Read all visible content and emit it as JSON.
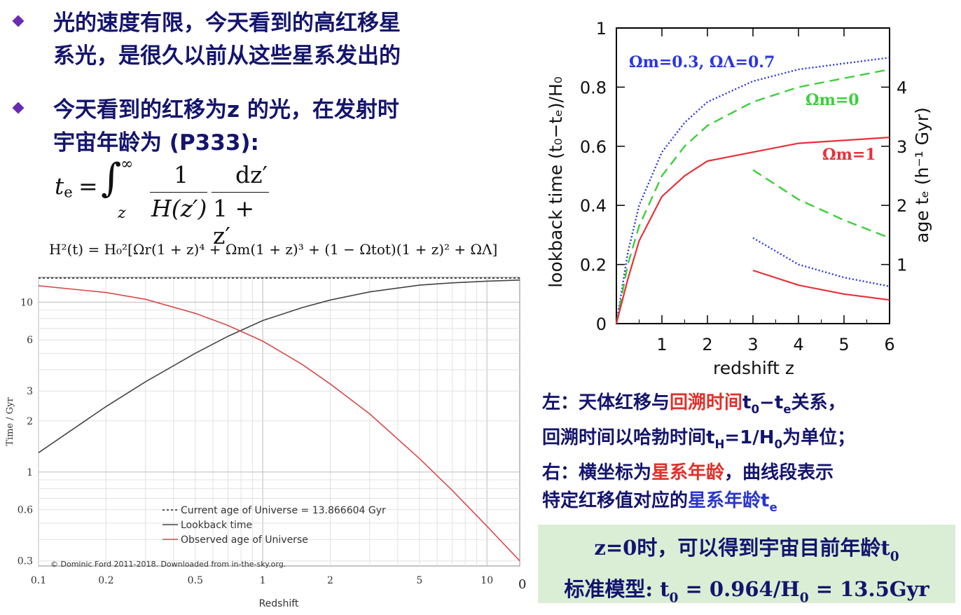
{
  "bullets": [
    {
      "lines": [
        "光的速度有限，今天看到的高红移星",
        "系光，是很久以前从这些星系发出的"
      ]
    },
    {
      "lines": [
        "今天看到的红移为z 的光，在发射时",
        "宇宙年龄为 (P333):"
      ]
    }
  ],
  "formula1": {
    "lhs": "t",
    "lhs_sub": "e",
    "equals": "=",
    "integral": "∫",
    "upper": "∞",
    "lower": "z",
    "frac1_num": "1",
    "frac1_den": "H(z′)",
    "frac2_num": "dz′",
    "frac2_den": "1 + z′"
  },
  "formula2": "H²(t) = H₀²[Ωr(1 + z)⁴ + Ωm(1 + z)³ + (1 − Ωtot)(1 + z)² + ΩΛ]",
  "left_chart": {
    "ylabel": "Time / Gyr",
    "xlabel": "Redshift",
    "xticks": [
      "0.1",
      "0.2",
      "0.5",
      "1",
      "2",
      "5",
      "10"
    ],
    "yticks": [
      "0.3",
      "0.6",
      "1",
      "2",
      "3",
      "6",
      "10"
    ],
    "legend": [
      "Current age of Universe = 13.866604 Gyr",
      "Lookback time",
      "Observed age of Universe"
    ],
    "credit": "© Dominic Ford 2011-2018. Downloaded from in-the-sky.org.",
    "edge_label": "0",
    "colors": {
      "lookback": "#444444",
      "observed": "#d94a4a",
      "current": "#222222"
    }
  },
  "right_chart": {
    "ylabel_left": "lookback time (t₀−tₑ)/H₀",
    "ylabel_right": "age tₑ (h⁻¹ Gyr)",
    "xlabel": "redshift z",
    "xticks": [
      "1",
      "2",
      "3",
      "4",
      "5",
      "6"
    ],
    "yticks_left": [
      "0",
      "0.2",
      "0.4",
      "0.6",
      "0.8",
      "1"
    ],
    "yticks_right": [
      "1",
      "2",
      "3",
      "4"
    ],
    "label_blue": "Ωm=0.3, ΩΛ=0.7",
    "label_green": "Ωm=0",
    "label_red": "Ωm=1",
    "colors": {
      "blue": "#2a36e0",
      "green": "#3ccf3c",
      "red": "#e8303a"
    }
  },
  "chart_data": [
    {
      "type": "line",
      "title": "",
      "xlabel": "Redshift",
      "ylabel": "Time / Gyr",
      "xscale": "log",
      "yscale": "log",
      "xlim": [
        0.1,
        14
      ],
      "ylim": [
        0.28,
        14
      ],
      "series": [
        {
          "name": "Current age of Universe = 13.866604 Gyr",
          "x": [
            0.1,
            14
          ],
          "y": [
            13.87,
            13.87
          ]
        },
        {
          "name": "Lookback time",
          "x": [
            0.1,
            0.2,
            0.3,
            0.5,
            0.7,
            1,
            1.5,
            2,
            3,
            5,
            7,
            10,
            14
          ],
          "y": [
            1.3,
            2.43,
            3.4,
            5.0,
            6.3,
            7.8,
            9.3,
            10.3,
            11.5,
            12.6,
            13.0,
            13.3,
            13.5
          ]
        },
        {
          "name": "Observed age of Universe",
          "x": [
            0.1,
            0.2,
            0.3,
            0.5,
            0.7,
            1,
            1.5,
            2,
            3,
            5,
            7,
            10,
            14
          ],
          "y": [
            12.5,
            11.4,
            10.4,
            8.6,
            7.3,
            5.9,
            4.3,
            3.3,
            2.2,
            1.2,
            0.78,
            0.48,
            0.3
          ]
        }
      ],
      "legend_position": "bottom-center"
    },
    {
      "type": "line",
      "title": "",
      "xlabel": "redshift z",
      "ylabel": "lookback time (t₀−tₑ)/H₀",
      "y2label": "age tₑ (h⁻¹ Gyr)",
      "xlim": [
        0,
        6
      ],
      "ylim": [
        0,
        1
      ],
      "y2lim": [
        0,
        5
      ],
      "series": [
        {
          "name": "Ωm=0.3, ΩΛ=0.7",
          "style": "dotted",
          "x": [
            0,
            0.25,
            0.5,
            1,
            1.5,
            2,
            3,
            4,
            5,
            6
          ],
          "y": [
            0,
            0.24,
            0.4,
            0.58,
            0.68,
            0.75,
            0.82,
            0.86,
            0.88,
            0.9
          ]
        },
        {
          "name": "Ωm=0",
          "style": "dashed",
          "x": [
            0,
            0.25,
            0.5,
            1,
            1.5,
            2,
            3,
            4,
            5,
            6
          ],
          "y": [
            0,
            0.2,
            0.33,
            0.5,
            0.6,
            0.67,
            0.75,
            0.8,
            0.83,
            0.86
          ]
        },
        {
          "name": "Ωm=1",
          "style": "solid",
          "x": [
            0,
            0.25,
            0.5,
            1,
            1.5,
            2,
            3,
            4,
            5,
            6
          ],
          "y": [
            0,
            0.15,
            0.28,
            0.43,
            0.5,
            0.55,
            0.58,
            0.61,
            0.62,
            0.63
          ]
        },
        {
          "style": "dotted",
          "axis": "y2",
          "x": [
            3,
            4,
            5,
            6
          ],
          "y": [
            1.45,
            1.0,
            0.78,
            0.63
          ]
        },
        {
          "style": "dashed",
          "axis": "y2",
          "x": [
            3,
            4,
            5,
            6
          ],
          "y": [
            2.6,
            2.1,
            1.75,
            1.45
          ]
        },
        {
          "style": "solid",
          "axis": "y2",
          "x": [
            3,
            4,
            5,
            6
          ],
          "y": [
            0.9,
            0.65,
            0.5,
            0.4
          ]
        }
      ]
    }
  ],
  "caption": {
    "line1_a": "左：天体红移与",
    "line1_b": "回溯时间",
    "line1_c": "t",
    "line1_c_sub": "0",
    "line1_d": "−t",
    "line1_d_sub": "e",
    "line1_e": "关系，",
    "line2_a": "回溯时间以哈勃时间t",
    "line2_a_sub": "H",
    "line2_b": "=1/H",
    "line2_b_sub": "0",
    "line2_c": "为单位；",
    "line3_a": "右：横坐标为",
    "line3_b": "星系年龄",
    "line3_c": "，曲线段表示",
    "line4_a": "特定红移值对应的",
    "line4_b": "星系年龄t",
    "line4_b_sub": "e"
  },
  "box": {
    "line1_a": "z=0时，可以得到宇宙目前年龄t",
    "line1_sub": "0",
    "line2_a": "标准模型: t",
    "line2_sub1": "0",
    "line2_b": " = 0.964/H",
    "line2_sub2": "0",
    "line2_c": " = 13.5Gyr"
  }
}
